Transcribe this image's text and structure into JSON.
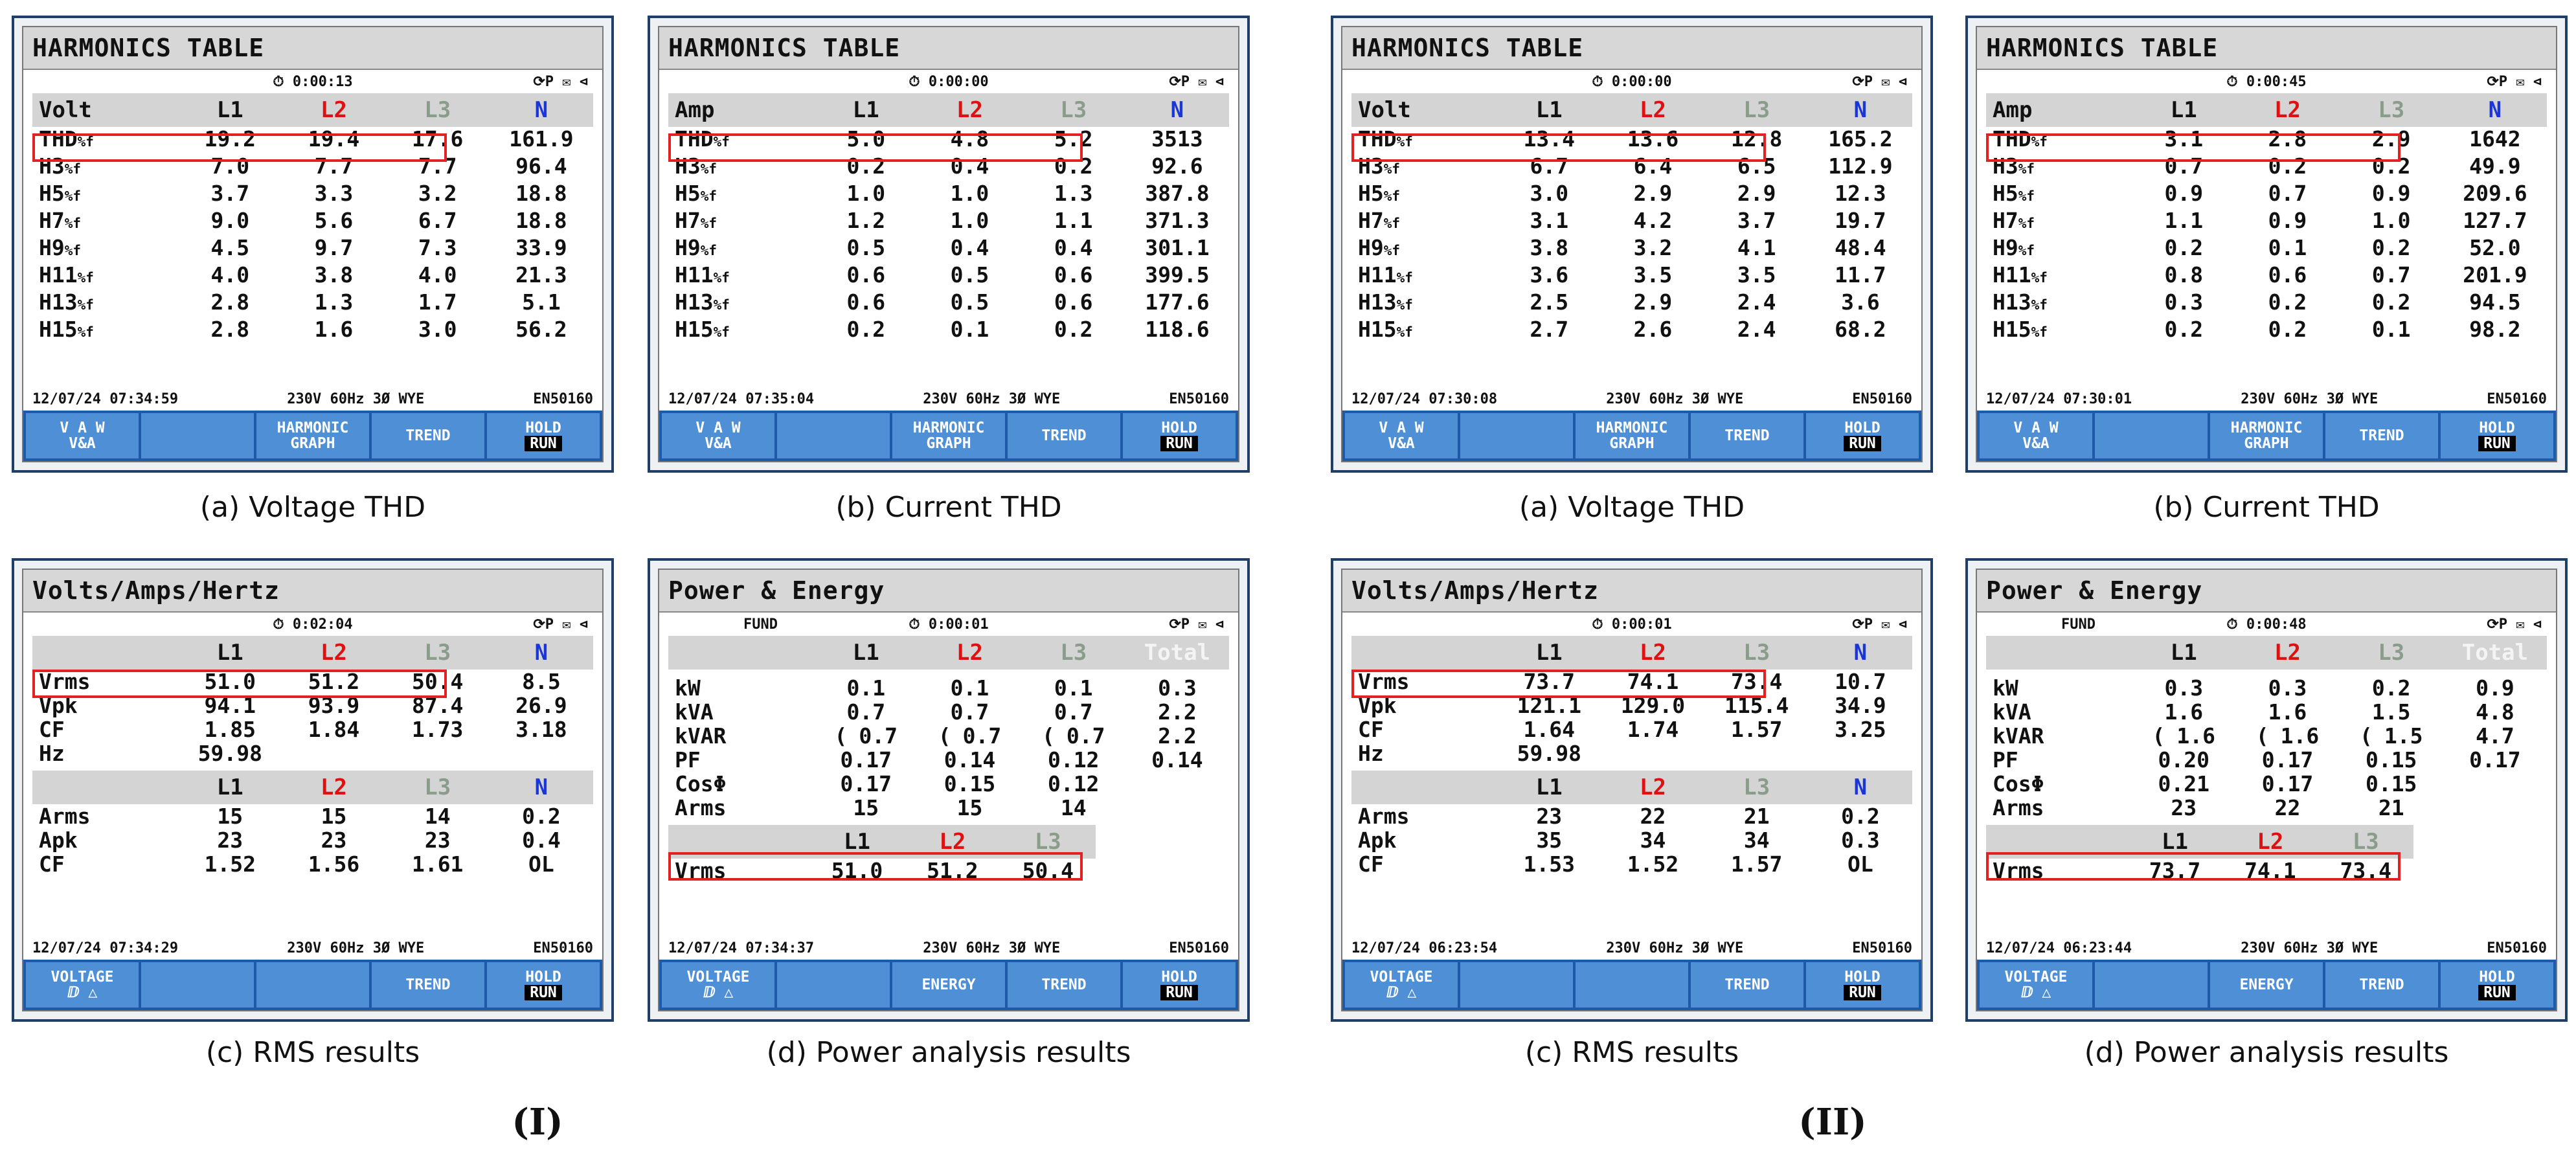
{
  "captions": {
    "a": "(a) Voltage THD",
    "b": "(b) Current THD",
    "c": "(c) RMS results",
    "d": "(d) Power analysis results"
  },
  "groups": {
    "I": "(I)",
    "II": "(II)"
  },
  "common": {
    "harmonics_title": "HARMONICS TABLE",
    "vah_title": "Volts/Amps/Hertz",
    "power_title": "Power & Energy",
    "status_icons": "⟳P ✉ ⊲",
    "timer_icon": "⏱",
    "config": "230V  60Hz 3Ø WYE",
    "standard": "EN50160",
    "col_l1": "L1",
    "col_l2": "L2",
    "col_l3": "L3",
    "col_n": "N",
    "col_total": "Total",
    "fund": "FUND",
    "vrms_label": "Vrms",
    "keys": {
      "vah_top": "V A W",
      "vah_bottom": "V&A",
      "harmonic_top": "HARMONIC",
      "harmonic_bottom": "GRAPH",
      "trend": "TREND",
      "hold": "HOLD",
      "run": "RUN",
      "voltage": "VOLTAGE",
      "voltage_sub": "ⅅ △",
      "energy": "ENERGY"
    }
  },
  "panels": {
    "I_a": {
      "timer": "0:00:13",
      "datetime": "12/07/24  07:34:59",
      "unit": "Volt",
      "rows": [
        {
          "label": "THD",
          "sub": "%f",
          "l1": "19.2",
          "l2": "19.4",
          "l3": "17.6",
          "n": "161.9"
        },
        {
          "label": "H3",
          "sub": "%f",
          "l1": "7.0",
          "l2": "7.7",
          "l3": "7.7",
          "n": "96.4"
        },
        {
          "label": "H5",
          "sub": "%f",
          "l1": "3.7",
          "l2": "3.3",
          "l3": "3.2",
          "n": "18.8"
        },
        {
          "label": "H7",
          "sub": "%f",
          "l1": "9.0",
          "l2": "5.6",
          "l3": "6.7",
          "n": "18.8"
        },
        {
          "label": "H9",
          "sub": "%f",
          "l1": "4.5",
          "l2": "9.7",
          "l3": "7.3",
          "n": "33.9"
        },
        {
          "label": "H11",
          "sub": "%f",
          "l1": "4.0",
          "l2": "3.8",
          "l3": "4.0",
          "n": "21.3"
        },
        {
          "label": "H13",
          "sub": "%f",
          "l1": "2.8",
          "l2": "1.3",
          "l3": "1.7",
          "n": "5.1"
        },
        {
          "label": "H15",
          "sub": "%f",
          "l1": "2.8",
          "l2": "1.6",
          "l3": "3.0",
          "n": "56.2"
        }
      ]
    },
    "I_b": {
      "timer": "0:00:00",
      "datetime": "12/07/24  07:35:04",
      "unit": "Amp",
      "rows": [
        {
          "label": "THD",
          "sub": "%f",
          "l1": "5.0",
          "l2": "4.8",
          "l3": "5.2",
          "n": "3513"
        },
        {
          "label": "H3",
          "sub": "%f",
          "l1": "0.2",
          "l2": "0.4",
          "l3": "0.2",
          "n": "92.6"
        },
        {
          "label": "H5",
          "sub": "%f",
          "l1": "1.0",
          "l2": "1.0",
          "l3": "1.3",
          "n": "387.8"
        },
        {
          "label": "H7",
          "sub": "%f",
          "l1": "1.2",
          "l2": "1.0",
          "l3": "1.1",
          "n": "371.3"
        },
        {
          "label": "H9",
          "sub": "%f",
          "l1": "0.5",
          "l2": "0.4",
          "l3": "0.4",
          "n": "301.1"
        },
        {
          "label": "H11",
          "sub": "%f",
          "l1": "0.6",
          "l2": "0.5",
          "l3": "0.6",
          "n": "399.5"
        },
        {
          "label": "H13",
          "sub": "%f",
          "l1": "0.6",
          "l2": "0.5",
          "l3": "0.6",
          "n": "177.6"
        },
        {
          "label": "H15",
          "sub": "%f",
          "l1": "0.2",
          "l2": "0.1",
          "l3": "0.2",
          "n": "118.6"
        }
      ]
    },
    "I_c": {
      "timer": "0:02:04",
      "datetime": "12/07/24  07:34:29",
      "vrows": [
        {
          "label": "Vrms",
          "l1": "51.0",
          "l2": "51.2",
          "l3": "50.4",
          "n": "8.5"
        },
        {
          "label": "Vpk",
          "l1": "94.1",
          "l2": "93.9",
          "l3": "87.4",
          "n": "26.9"
        },
        {
          "label": "CF",
          "l1": "1.85",
          "l2": "1.84",
          "l3": "1.73",
          "n": "3.18"
        },
        {
          "label": "Hz",
          "l1": "59.98",
          "l2": "",
          "l3": "",
          "n": ""
        }
      ],
      "arows": [
        {
          "label": "Arms",
          "l1": "15",
          "l2": "15",
          "l3": "14",
          "n": "0.2"
        },
        {
          "label": "Apk",
          "l1": "23",
          "l2": "23",
          "l3": "23",
          "n": "0.4"
        },
        {
          "label": "CF",
          "l1": "1.52",
          "l2": "1.56",
          "l3": "1.61",
          "n": "OL"
        }
      ]
    },
    "I_d": {
      "timer": "0:00:01",
      "datetime": "12/07/24  07:34:37",
      "rows": [
        {
          "label": "kW",
          "pre": "",
          "l1": "0.1",
          "l2": "0.1",
          "l3": "0.1",
          "t": "0.3"
        },
        {
          "label": "kVA",
          "pre": "",
          "l1": "0.7",
          "l2": "0.7",
          "l3": "0.7",
          "t": "2.2"
        },
        {
          "label": "kVAR",
          "pre": "(",
          "l1": "0.7",
          "l2": "0.7",
          "l3": "0.7",
          "t": "2.2"
        },
        {
          "label": "PF",
          "pre": "",
          "l1": "0.17",
          "l2": "0.14",
          "l3": "0.12",
          "t": "0.14"
        },
        {
          "label": "CosΦ",
          "pre": "",
          "l1": "0.17",
          "l2": "0.15",
          "l3": "0.12",
          "t": ""
        },
        {
          "label": "Arms",
          "pre": "",
          "l1": "15",
          "l2": "15",
          "l3": "14",
          "t": ""
        }
      ],
      "vrms": {
        "l1": "51.0",
        "l2": "51.2",
        "l3": "50.4"
      }
    },
    "II_a": {
      "timer": "0:00:00",
      "datetime": "12/07/24  07:30:08",
      "unit": "Volt",
      "rows": [
        {
          "label": "THD",
          "sub": "%f",
          "l1": "13.4",
          "l2": "13.6",
          "l3": "12.8",
          "n": "165.2"
        },
        {
          "label": "H3",
          "sub": "%f",
          "l1": "6.7",
          "l2": "6.4",
          "l3": "6.5",
          "n": "112.9"
        },
        {
          "label": "H5",
          "sub": "%f",
          "l1": "3.0",
          "l2": "2.9",
          "l3": "2.9",
          "n": "12.3"
        },
        {
          "label": "H7",
          "sub": "%f",
          "l1": "3.1",
          "l2": "4.2",
          "l3": "3.7",
          "n": "19.7"
        },
        {
          "label": "H9",
          "sub": "%f",
          "l1": "3.8",
          "l2": "3.2",
          "l3": "4.1",
          "n": "48.4"
        },
        {
          "label": "H11",
          "sub": "%f",
          "l1": "3.6",
          "l2": "3.5",
          "l3": "3.5",
          "n": "11.7"
        },
        {
          "label": "H13",
          "sub": "%f",
          "l1": "2.5",
          "l2": "2.9",
          "l3": "2.4",
          "n": "3.6"
        },
        {
          "label": "H15",
          "sub": "%f",
          "l1": "2.7",
          "l2": "2.6",
          "l3": "2.4",
          "n": "68.2"
        }
      ]
    },
    "II_b": {
      "timer": "0:00:45",
      "datetime": "12/07/24  07:30:01",
      "unit": "Amp",
      "rows": [
        {
          "label": "THD",
          "sub": "%f",
          "l1": "3.1",
          "l2": "2.8",
          "l3": "2.9",
          "n": "1642"
        },
        {
          "label": "H3",
          "sub": "%f",
          "l1": "0.7",
          "l2": "0.2",
          "l3": "0.2",
          "n": "49.9"
        },
        {
          "label": "H5",
          "sub": "%f",
          "l1": "0.9",
          "l2": "0.7",
          "l3": "0.9",
          "n": "209.6"
        },
        {
          "label": "H7",
          "sub": "%f",
          "l1": "1.1",
          "l2": "0.9",
          "l3": "1.0",
          "n": "127.7"
        },
        {
          "label": "H9",
          "sub": "%f",
          "l1": "0.2",
          "l2": "0.1",
          "l3": "0.2",
          "n": "52.0"
        },
        {
          "label": "H11",
          "sub": "%f",
          "l1": "0.8",
          "l2": "0.6",
          "l3": "0.7",
          "n": "201.9"
        },
        {
          "label": "H13",
          "sub": "%f",
          "l1": "0.3",
          "l2": "0.2",
          "l3": "0.2",
          "n": "94.5"
        },
        {
          "label": "H15",
          "sub": "%f",
          "l1": "0.2",
          "l2": "0.2",
          "l3": "0.1",
          "n": "98.2"
        }
      ]
    },
    "II_c": {
      "timer": "0:00:01",
      "datetime": "12/07/24  06:23:54",
      "vrows": [
        {
          "label": "Vrms",
          "l1": "73.7",
          "l2": "74.1",
          "l3": "73.4",
          "n": "10.7"
        },
        {
          "label": "Vpk",
          "l1": "121.1",
          "l2": "129.0",
          "l3": "115.4",
          "n": "34.9"
        },
        {
          "label": "CF",
          "l1": "1.64",
          "l2": "1.74",
          "l3": "1.57",
          "n": "3.25"
        },
        {
          "label": "Hz",
          "l1": "59.98",
          "l2": "",
          "l3": "",
          "n": ""
        }
      ],
      "arows": [
        {
          "label": "Arms",
          "l1": "23",
          "l2": "22",
          "l3": "21",
          "n": "0.2"
        },
        {
          "label": "Apk",
          "l1": "35",
          "l2": "34",
          "l3": "34",
          "n": "0.3"
        },
        {
          "label": "CF",
          "l1": "1.53",
          "l2": "1.52",
          "l3": "1.57",
          "n": "OL"
        }
      ]
    },
    "II_d": {
      "timer": "0:00:48",
      "datetime": "12/07/24  06:23:44",
      "rows": [
        {
          "label": "kW",
          "pre": "",
          "l1": "0.3",
          "l2": "0.3",
          "l3": "0.2",
          "t": "0.9"
        },
        {
          "label": "kVA",
          "pre": "",
          "l1": "1.6",
          "l2": "1.6",
          "l3": "1.5",
          "t": "4.8"
        },
        {
          "label": "kVAR",
          "pre": "(",
          "l1": "1.6",
          "l2": "1.6",
          "l3": "1.5",
          "t": "4.7"
        },
        {
          "label": "PF",
          "pre": "",
          "l1": "0.20",
          "l2": "0.17",
          "l3": "0.15",
          "t": "0.17"
        },
        {
          "label": "CosΦ",
          "pre": "",
          "l1": "0.21",
          "l2": "0.17",
          "l3": "0.15",
          "t": ""
        },
        {
          "label": "Arms",
          "pre": "",
          "l1": "23",
          "l2": "22",
          "l3": "21",
          "t": ""
        }
      ],
      "vrms": {
        "l1": "73.7",
        "l2": "74.1",
        "l3": "73.4"
      }
    }
  }
}
